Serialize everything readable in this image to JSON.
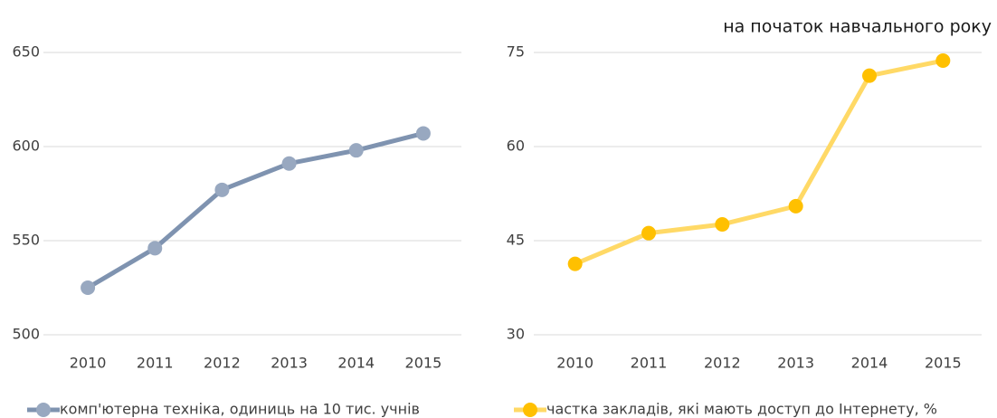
{
  "caption": "на початок навчального року",
  "chart_data": [
    {
      "type": "line",
      "categories": [
        "2010",
        "2011",
        "2012",
        "2013",
        "2014",
        "2015"
      ],
      "series": [
        {
          "name": "комп'ютерна техніка, одиниць на 10 тис. учнів",
          "color": "#7f93b0",
          "marker_color": "#98a8c0",
          "values": [
            525,
            546,
            577,
            591,
            598,
            607
          ]
        }
      ],
      "ylim": [
        500,
        650
      ],
      "yticks": [
        500,
        550,
        600,
        650
      ],
      "grid": true
    },
    {
      "type": "line",
      "categories": [
        "2010",
        "2011",
        "2012",
        "2013",
        "2014",
        "2015"
      ],
      "series": [
        {
          "name": "частка закладів, які мають доступ до Інтернету, %",
          "color": "#ffd966",
          "marker_color": "#ffc000",
          "values": [
            41.3,
            46.2,
            47.6,
            50.5,
            71.3,
            73.7
          ]
        }
      ],
      "ylim": [
        30,
        75
      ],
      "yticks": [
        30,
        45,
        60,
        75
      ],
      "grid": true
    }
  ]
}
